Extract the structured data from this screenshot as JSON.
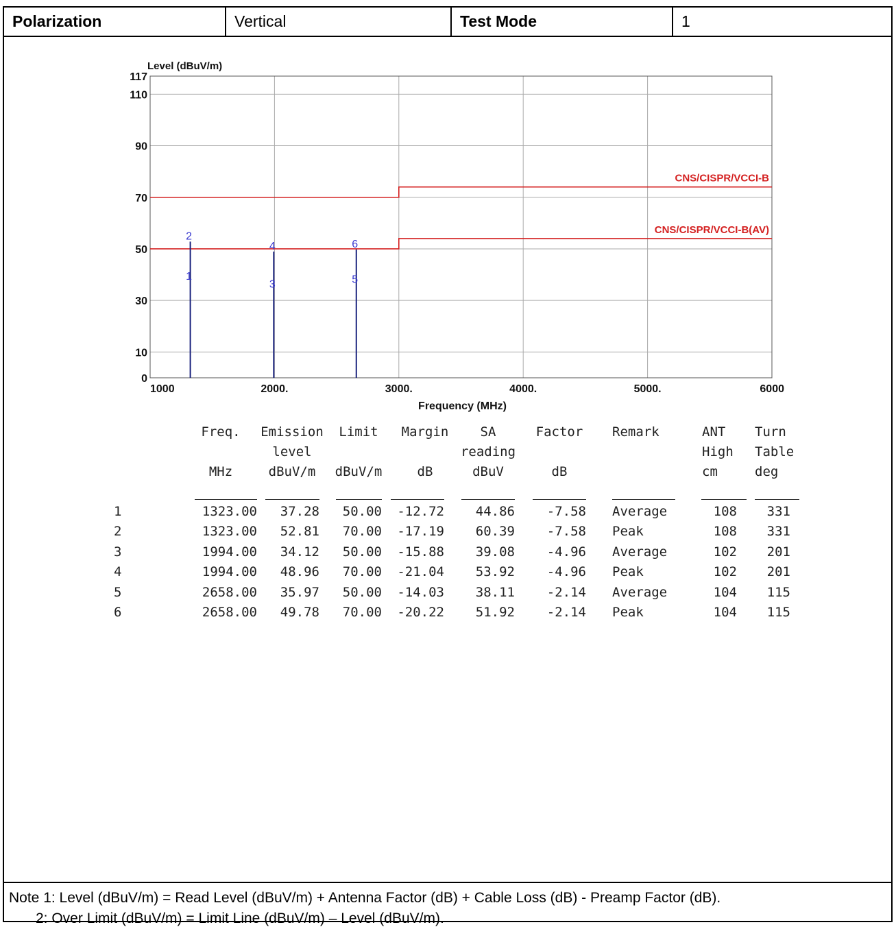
{
  "header": {
    "polarization_label": "Polarization",
    "polarization_value": "Vertical",
    "test_mode_label": "Test Mode",
    "test_mode_value": "1"
  },
  "chart_data": {
    "type": "line",
    "ylabel": "Level (dBuV/m)",
    "xlabel": "Frequency (MHz)",
    "ylim": [
      0,
      117
    ],
    "xlim": [
      1000,
      6000
    ],
    "yticks": [
      {
        "value": 117,
        "label": "117"
      },
      {
        "value": 110,
        "label": "110"
      },
      {
        "value": 90,
        "label": "90"
      },
      {
        "value": 70,
        "label": "70"
      },
      {
        "value": 50,
        "label": "50"
      },
      {
        "value": 30,
        "label": "30"
      },
      {
        "value": 10,
        "label": "10"
      },
      {
        "value": 0,
        "label": "0"
      }
    ],
    "xticks": [
      {
        "value": 1000,
        "label": "1000"
      },
      {
        "value": 2000,
        "label": "2000."
      },
      {
        "value": 3000,
        "label": "3000."
      },
      {
        "value": 4000,
        "label": "4000."
      },
      {
        "value": 5000,
        "label": "5000."
      },
      {
        "value": 6000,
        "label": "6000"
      }
    ],
    "grid": true,
    "colors": {
      "limit": "#d42020",
      "marker": "#1a237e",
      "marker_label": "#3a3ad0",
      "grid": "#aaaaaa"
    },
    "series": [
      {
        "name": "CNS/CISPR/VCCI-B",
        "x": [
          1000,
          3000,
          3000,
          6000
        ],
        "y": [
          70,
          70,
          74,
          74
        ]
      },
      {
        "name": "CNS/CISPR/VCCI-B(AV)",
        "x": [
          1000,
          3000,
          3000,
          6000
        ],
        "y": [
          50,
          50,
          54,
          54
        ]
      }
    ],
    "markers": [
      {
        "label": "1",
        "x": 1323.0,
        "y": 37.28
      },
      {
        "label": "2",
        "x": 1323.0,
        "y": 52.81
      },
      {
        "label": "3",
        "x": 1994.0,
        "y": 34.12
      },
      {
        "label": "4",
        "x": 1994.0,
        "y": 48.96
      },
      {
        "label": "5",
        "x": 2658.0,
        "y": 35.97
      },
      {
        "label": "6",
        "x": 2658.0,
        "y": 49.78
      }
    ]
  },
  "table": {
    "headers": [
      [
        "Freq.",
        "",
        "MHz"
      ],
      [
        "Emission",
        "level",
        "dBuV/m"
      ],
      [
        "Limit",
        "",
        "dBuV/m"
      ],
      [
        "Margin",
        "",
        "dB"
      ],
      [
        "SA",
        "reading",
        "dBuV"
      ],
      [
        "Factor",
        "",
        "dB"
      ],
      [
        "Remark",
        "",
        ""
      ],
      [
        "ANT",
        "High",
        "cm"
      ],
      [
        "Turn",
        "Table",
        "deg"
      ]
    ],
    "rows": [
      [
        "1",
        "1323.00",
        "37.28",
        "50.00",
        "-12.72",
        "44.86",
        "-7.58",
        "Average",
        "108",
        "331"
      ],
      [
        "2",
        "1323.00",
        "52.81",
        "70.00",
        "-17.19",
        "60.39",
        "-7.58",
        "Peak",
        "108",
        "331"
      ],
      [
        "3",
        "1994.00",
        "34.12",
        "50.00",
        "-15.88",
        "39.08",
        "-4.96",
        "Average",
        "102",
        "201"
      ],
      [
        "4",
        "1994.00",
        "48.96",
        "70.00",
        "-21.04",
        "53.92",
        "-4.96",
        "Peak",
        "102",
        "201"
      ],
      [
        "5",
        "2658.00",
        "35.97",
        "50.00",
        "-14.03",
        "38.11",
        "-2.14",
        "Average",
        "104",
        "115"
      ],
      [
        "6",
        "2658.00",
        "49.78",
        "70.00",
        "-20.22",
        "51.92",
        "-2.14",
        "Peak",
        "104",
        "115"
      ]
    ]
  },
  "notes": [
    "Note 1: Level (dBuV/m) = Read Level (dBuV/m) + Antenna Factor (dB) + Cable Loss (dB) - Preamp Factor (dB).",
    "2: Over Limit (dBuV/m) = Limit Line (dBuV/m) – Level (dBuV/m)."
  ]
}
